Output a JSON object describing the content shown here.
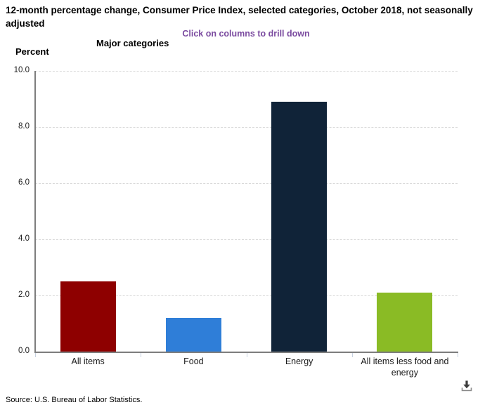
{
  "header": {
    "title": "12-month percentage change, Consumer Price Index, selected categories, October 2018, not seasonally adjusted",
    "subtitle": "Click on columns to drill down",
    "group_label": "Major categories",
    "unit_label": "Percent"
  },
  "chart_data": {
    "type": "bar",
    "title": "12-month percentage change, Consumer Price Index, selected categories, October 2018, not seasonally adjusted",
    "subtitle": "Click on columns to drill down",
    "categories": [
      "All items",
      "Food",
      "Energy",
      "All items less food and energy"
    ],
    "values": [
      2.5,
      1.2,
      8.9,
      2.1
    ],
    "bar_colors": [
      "#8e0000",
      "#2f7ed8",
      "#102338",
      "#8abb25"
    ],
    "xlabel": "Major categories",
    "ylabel": "Percent",
    "ylim": [
      0,
      10
    ],
    "ytick_interval": 2,
    "ytick_labels": [
      "0.0",
      "2.0",
      "4.0",
      "6.0",
      "8.0",
      "10.0"
    ],
    "grid": "horizontal-dashed",
    "legend": "none"
  },
  "footer": {
    "source": "Source: U.S. Bureau of Labor Statistics."
  },
  "icons": {
    "download": "download-icon"
  },
  "colors": {
    "subtitle_text": "#7a4a9f",
    "axis_line": "#7d7d7d",
    "grid_line": "#d9d9d9",
    "tick_mark": "#c7d1e0"
  }
}
